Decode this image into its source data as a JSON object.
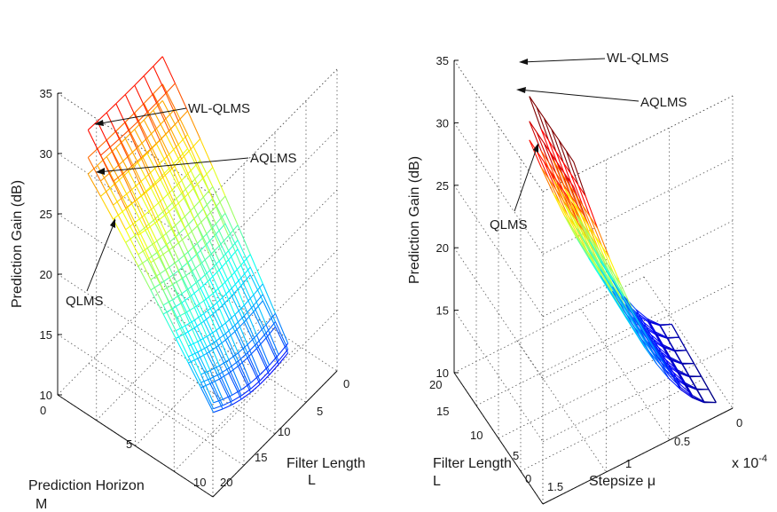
{
  "chart_data": [
    {
      "type": "surface",
      "zlabel": "Prediction Gain (dB)",
      "xlabel": "Filter Length\nL",
      "ylabel": "Prediction Horizon\nM",
      "x_ticks": [
        "0",
        "5",
        "10",
        "15",
        "20"
      ],
      "y_ticks": [
        "0",
        "5",
        "10"
      ],
      "z_ticks": [
        "10",
        "15",
        "20",
        "25",
        "30",
        "35"
      ],
      "zlim": [
        10,
        35
      ],
      "grid": true,
      "series": [
        {
          "name": "WL-QLMS",
          "peak": 33.5,
          "low": 12.5
        },
        {
          "name": "AQLMS",
          "peak": 31.0,
          "low": 12.5
        },
        {
          "name": "QLMS",
          "peak": 29.5,
          "low": 12.5
        }
      ],
      "annotations": [
        "WL-QLMS",
        "AQLMS",
        "QLMS"
      ]
    },
    {
      "type": "surface",
      "zlabel": "Prediction Gain (dB)",
      "xlabel": "Stepsize μ",
      "x_exponent": "x 10",
      "x_exponent_power": "-4",
      "ylabel": "Filter Length\nL",
      "x_ticks": [
        "0",
        "0.5",
        "1",
        "1.5"
      ],
      "y_ticks": [
        "0",
        "5",
        "10",
        "15",
        "20"
      ],
      "z_ticks": [
        "10",
        "15",
        "20",
        "25",
        "30",
        "35"
      ],
      "zlim": [
        10,
        35
      ],
      "grid": true,
      "series": [
        {
          "name": "WL-QLMS",
          "peak": 35.0,
          "low": 11.0
        },
        {
          "name": "AQLMS",
          "peak": 33.0,
          "low": 11.0
        },
        {
          "name": "QLMS",
          "peak": 31.5,
          "low": 11.0
        }
      ],
      "annotations": [
        "WL-QLMS",
        "AQLMS",
        "QLMS"
      ]
    }
  ]
}
